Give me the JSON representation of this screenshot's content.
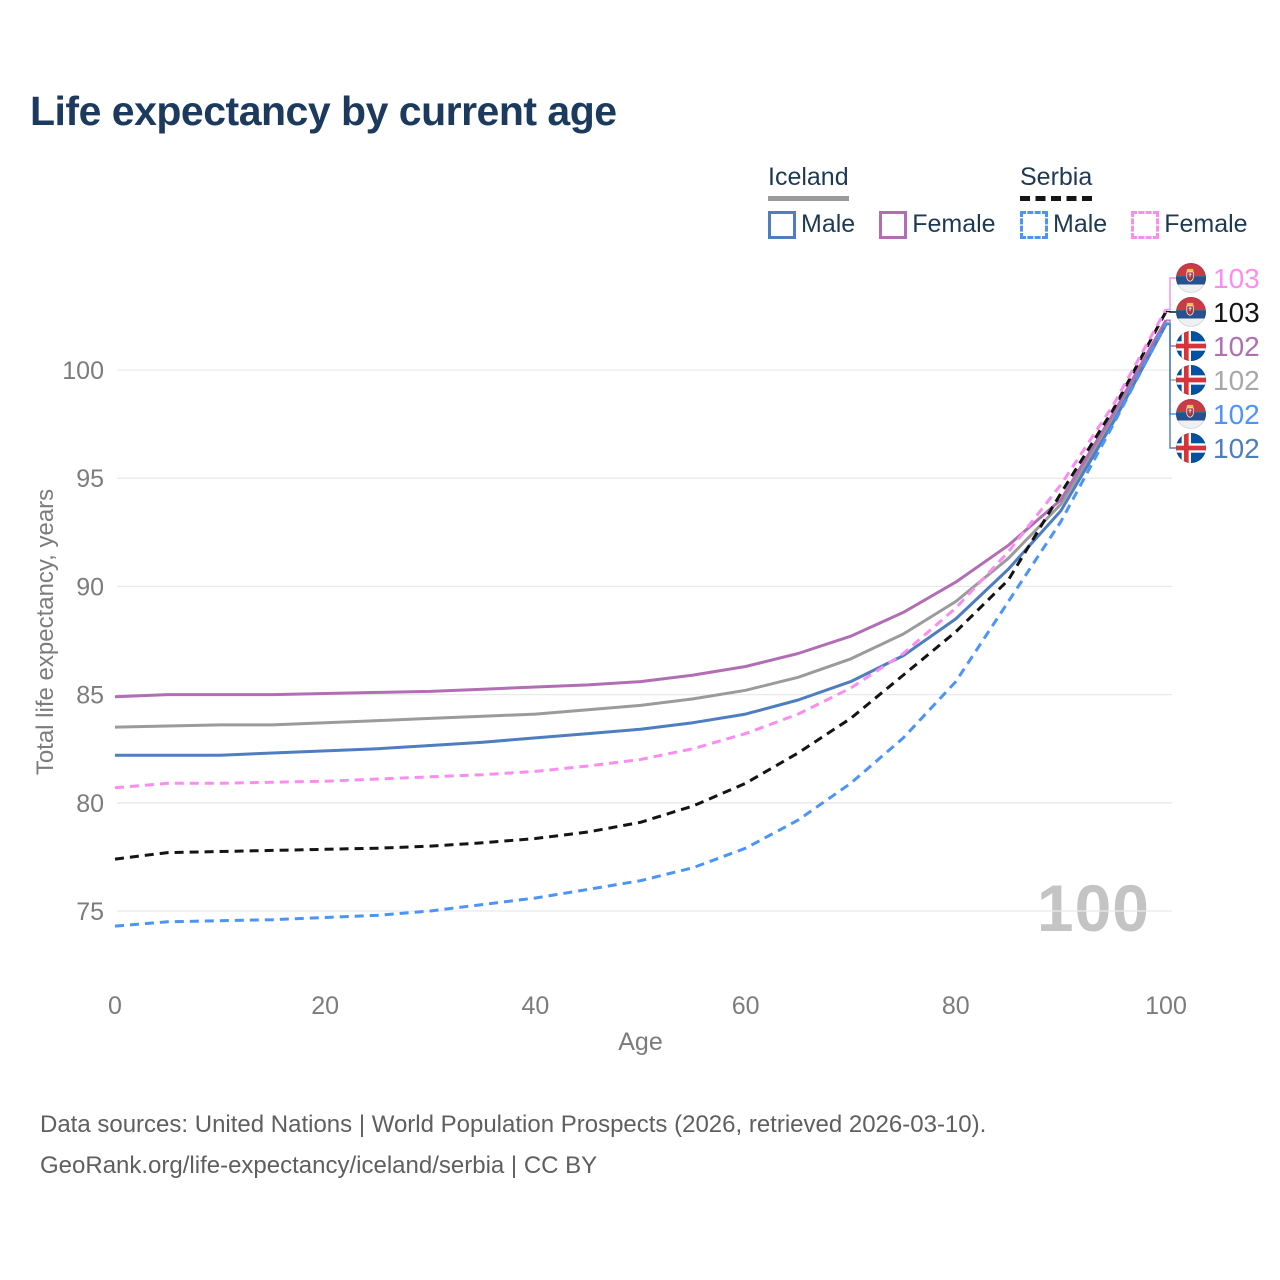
{
  "title": "Life expectancy by current age",
  "legend": {
    "groups": [
      {
        "country": "Iceland",
        "line_style": "solid",
        "line_color": "#9b9b9b",
        "items": [
          {
            "label": "Male",
            "color": "#4e7dc0",
            "style": "solid"
          },
          {
            "label": "Female",
            "color": "#b16eb4",
            "style": "solid"
          }
        ]
      },
      {
        "country": "Serbia",
        "line_style": "dashed",
        "line_color": "#151515",
        "items": [
          {
            "label": "Male",
            "color": "#4b94f8",
            "style": "dashed"
          },
          {
            "label": "Female",
            "color": "#fb8cf0",
            "style": "dashed"
          }
        ]
      }
    ]
  },
  "axes": {
    "x_label": "Age",
    "y_label": "Total life expectancy, years"
  },
  "watermark": "100",
  "footer": {
    "line1": "Data sources: United Nations | World Population Prospects (2026, retrieved 2026-03-10).",
    "line2": "GeoRank.org/life-expectancy/iceland/serbia | CC BY"
  },
  "chart_data": {
    "type": "line",
    "title": "Life expectancy by current age",
    "xlabel": "Age",
    "ylabel": "Total life expectancy, years",
    "xlim": [
      0,
      100
    ],
    "ylim": [
      73.5,
      103.5
    ],
    "x_ticks": [
      0,
      20,
      40,
      60,
      80,
      100
    ],
    "y_ticks": [
      75,
      80,
      85,
      90,
      95,
      100
    ],
    "grid": "horizontal",
    "legend_position": "top-right",
    "x": [
      0,
      5,
      10,
      15,
      20,
      25,
      30,
      35,
      40,
      45,
      50,
      55,
      60,
      65,
      70,
      75,
      80,
      85,
      90,
      95,
      100
    ],
    "series": [
      {
        "name": "Iceland Male",
        "country": "Iceland",
        "sex": "Male",
        "color": "#4e7dc0",
        "dash": "solid",
        "values": [
          82.2,
          82.2,
          82.2,
          82.3,
          82.4,
          82.5,
          82.65,
          82.8,
          83.0,
          83.2,
          83.4,
          83.7,
          84.1,
          84.75,
          85.6,
          86.8,
          88.5,
          90.8,
          93.5,
          97.6,
          102.1
        ]
      },
      {
        "name": "Iceland Female",
        "country": "Iceland",
        "sex": "Female",
        "color": "#b16eb4",
        "dash": "solid",
        "values": [
          84.9,
          85.0,
          85.0,
          85.0,
          85.05,
          85.1,
          85.15,
          85.25,
          85.35,
          85.45,
          85.6,
          85.9,
          86.3,
          86.9,
          87.7,
          88.8,
          90.2,
          91.9,
          94.0,
          98.0,
          102.3
        ]
      },
      {
        "name": "Iceland",
        "country": "Iceland",
        "sex": "Total",
        "color": "#9b9b9b",
        "dash": "solid",
        "values": [
          83.5,
          83.55,
          83.6,
          83.6,
          83.7,
          83.8,
          83.9,
          84.0,
          84.1,
          84.3,
          84.5,
          84.8,
          85.2,
          85.8,
          86.65,
          87.8,
          89.3,
          91.3,
          93.8,
          97.8,
          102.2
        ]
      },
      {
        "name": "Serbia Male",
        "country": "Serbia",
        "sex": "Male",
        "color": "#4b94f8",
        "dash": "dashed",
        "values": [
          74.3,
          74.5,
          74.55,
          74.6,
          74.7,
          74.8,
          75.0,
          75.3,
          75.6,
          76.0,
          76.4,
          77.0,
          77.9,
          79.2,
          80.9,
          83.0,
          85.6,
          89.3,
          93.0,
          97.5,
          102.15
        ]
      },
      {
        "name": "Serbia Female",
        "country": "Serbia",
        "sex": "Female",
        "color": "#fb8cf0",
        "dash": "dashed",
        "values": [
          80.7,
          80.9,
          80.9,
          80.95,
          81.0,
          81.1,
          81.2,
          81.3,
          81.45,
          81.7,
          82.0,
          82.5,
          83.2,
          84.1,
          85.3,
          86.9,
          89.0,
          91.6,
          94.7,
          98.4,
          102.8
        ]
      },
      {
        "name": "Serbia",
        "country": "Serbia",
        "sex": "Total",
        "color": "#141414",
        "dash": "dashed",
        "values": [
          77.4,
          77.7,
          77.75,
          77.8,
          77.85,
          77.9,
          78.0,
          78.15,
          78.35,
          78.65,
          79.1,
          79.85,
          80.9,
          82.3,
          83.9,
          85.9,
          87.9,
          90.3,
          94.3,
          98.2,
          102.7
        ]
      }
    ],
    "end_labels": [
      {
        "series": 4,
        "flag": "serbia",
        "value": "103",
        "color": "#fb8cf0"
      },
      {
        "series": 5,
        "flag": "serbia",
        "value": "103",
        "color": "#141414"
      },
      {
        "series": 1,
        "flag": "iceland",
        "value": "102",
        "color": "#b16eb4"
      },
      {
        "series": 2,
        "flag": "iceland",
        "value": "102",
        "color": "#a8a8a8"
      },
      {
        "series": 3,
        "flag": "serbia",
        "value": "102",
        "color": "#4b94f8"
      },
      {
        "series": 0,
        "flag": "iceland",
        "value": "102",
        "color": "#4e7dc0"
      }
    ]
  }
}
